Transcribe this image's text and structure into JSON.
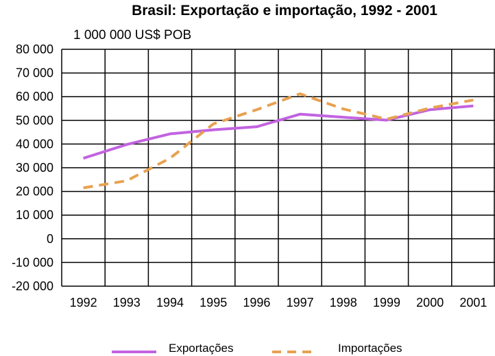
{
  "chart_data": {
    "type": "line",
    "title": "Brasil: Exportação e importação, 1992 - 2001",
    "unit_label": "1 000 000 US$ POB",
    "xlabel": "",
    "ylabel": "",
    "x": [
      "1992",
      "1993",
      "1994",
      "1995",
      "1996",
      "1997",
      "1998",
      "1999",
      "2000",
      "2001"
    ],
    "ylim": [
      -20000,
      80000
    ],
    "yticks": [
      80000,
      70000,
      60000,
      50000,
      40000,
      30000,
      20000,
      10000,
      0,
      -10000,
      -20000
    ],
    "ytick_labels": [
      "80 000",
      "70 000",
      "60 000",
      "50 000",
      "40 000",
      "30 000",
      "20 000",
      "10 000",
      "0",
      "-10 000",
      "-20 000"
    ],
    "grid": true,
    "legend_position": "bottom",
    "series": [
      {
        "name": "Exportações",
        "color": "#c263e0",
        "style": "solid",
        "values": [
          34000,
          39800,
          44300,
          46000,
          47300,
          52600,
          51300,
          50100,
          54500,
          56100
        ]
      },
      {
        "name": "Importações",
        "color": "#e8a150",
        "style": "dashed",
        "values": [
          21500,
          24500,
          34000,
          48500,
          54500,
          61200,
          54800,
          50500,
          55200,
          58600
        ]
      }
    ]
  }
}
